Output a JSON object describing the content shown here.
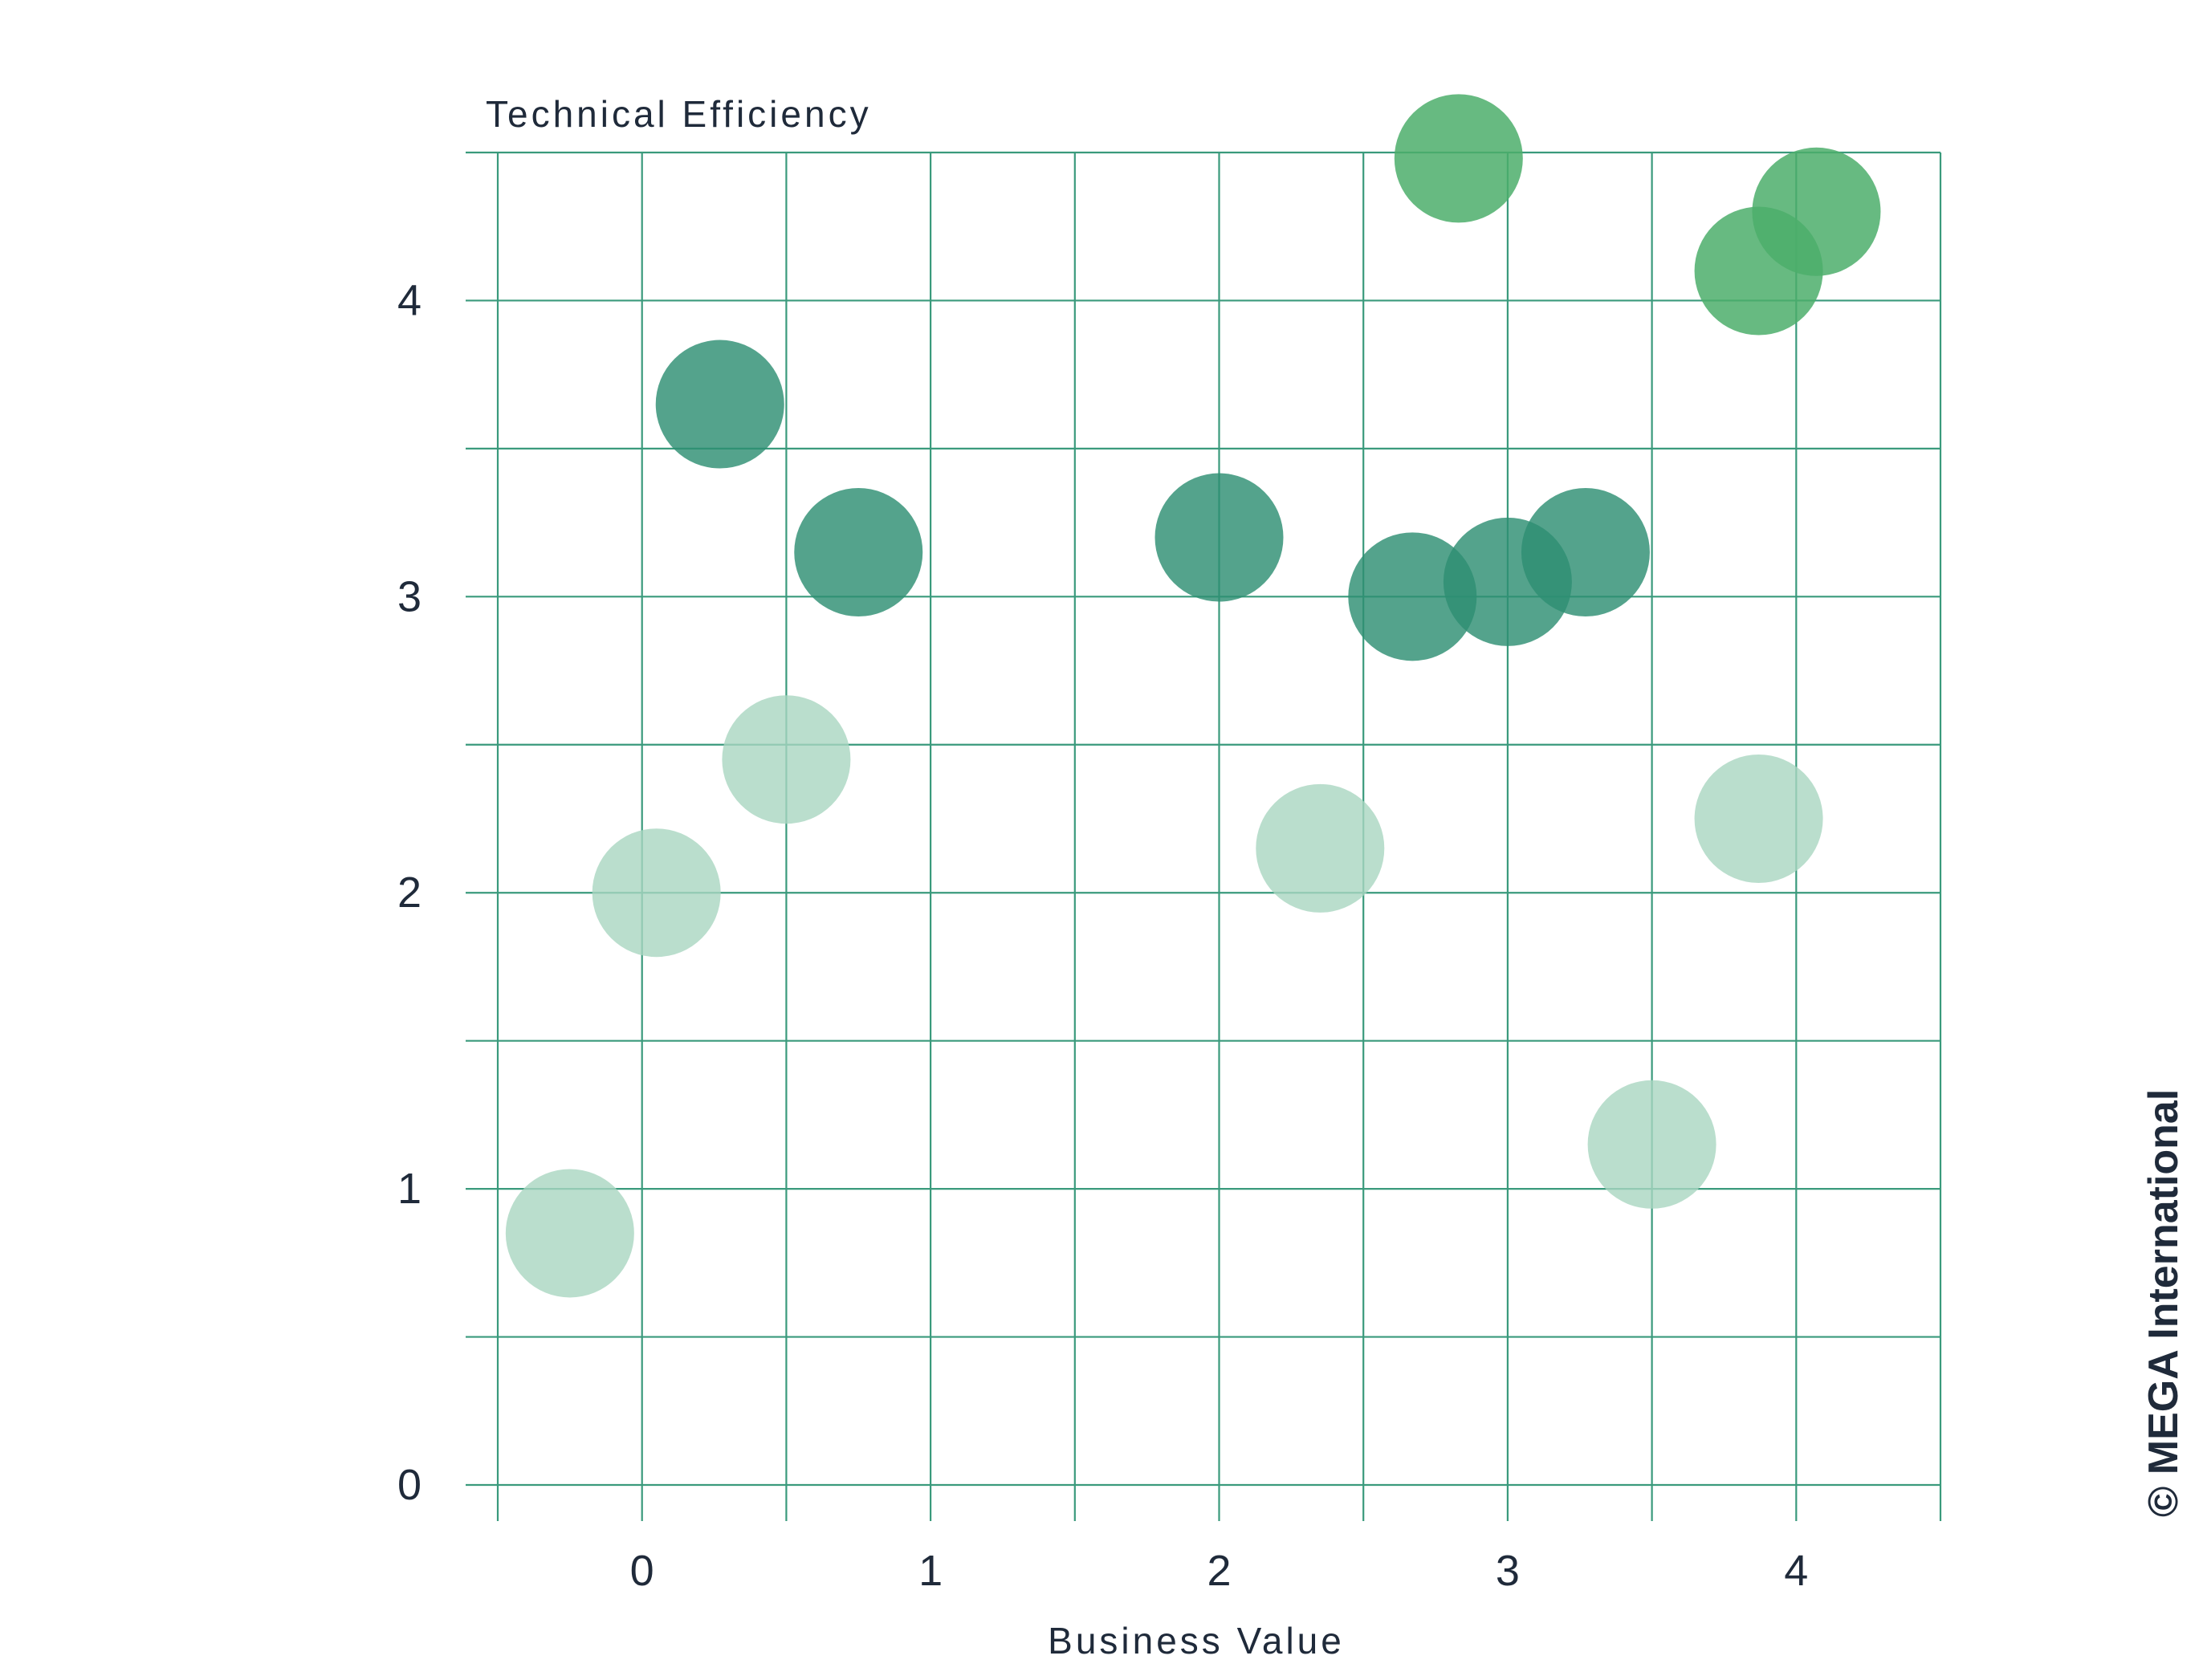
{
  "chart_data": {
    "type": "scatter",
    "xlabel": "Business Value",
    "ylabel": "Technical Efficiency",
    "xlim": [
      -0.5,
      4.5
    ],
    "ylim": [
      0,
      4.5
    ],
    "x_ticks": [
      0,
      1,
      2,
      3,
      4
    ],
    "y_ticks": [
      0,
      1,
      2,
      3,
      4
    ],
    "grid": true,
    "colors": {
      "light": "#a9d6c1",
      "dark": "#2e8f73",
      "bright": "#4cae6b",
      "grid": "#3a9a7c",
      "text": "#1f2a3a"
    },
    "points": [
      {
        "x": -0.25,
        "y": 0.85,
        "group": "light"
      },
      {
        "x": 0.05,
        "y": 2.0,
        "group": "light"
      },
      {
        "x": 0.5,
        "y": 2.45,
        "group": "light"
      },
      {
        "x": 2.35,
        "y": 2.15,
        "group": "light"
      },
      {
        "x": 3.5,
        "y": 1.15,
        "group": "light"
      },
      {
        "x": 3.87,
        "y": 2.25,
        "group": "light"
      },
      {
        "x": 0.27,
        "y": 3.65,
        "group": "dark"
      },
      {
        "x": 0.75,
        "y": 3.15,
        "group": "dark"
      },
      {
        "x": 2.0,
        "y": 3.2,
        "group": "dark"
      },
      {
        "x": 2.67,
        "y": 3.0,
        "group": "dark"
      },
      {
        "x": 3.0,
        "y": 3.05,
        "group": "dark"
      },
      {
        "x": 3.27,
        "y": 3.15,
        "group": "dark"
      },
      {
        "x": 2.83,
        "y": 4.48,
        "group": "bright"
      },
      {
        "x": 3.87,
        "y": 4.1,
        "group": "bright"
      },
      {
        "x": 4.07,
        "y": 4.3,
        "group": "bright"
      }
    ]
  },
  "copyright": "© MEGA International"
}
